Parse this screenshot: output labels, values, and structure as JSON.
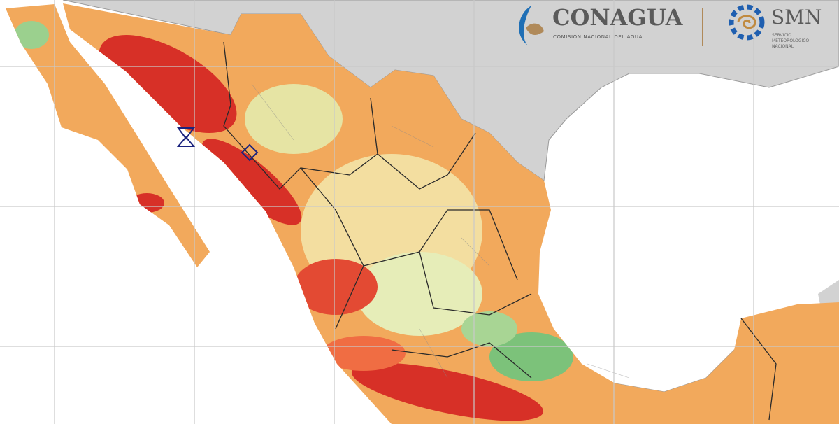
{
  "logo_left": {
    "title": "CONAGUA",
    "subtitle": "COMISIÓN NACIONAL DEL AGUA"
  },
  "logo_right": {
    "title": "SMN",
    "subtitle_lines": [
      "SERVICIO",
      "METEOROLÓGICO",
      "NACIONAL"
    ]
  }
}
